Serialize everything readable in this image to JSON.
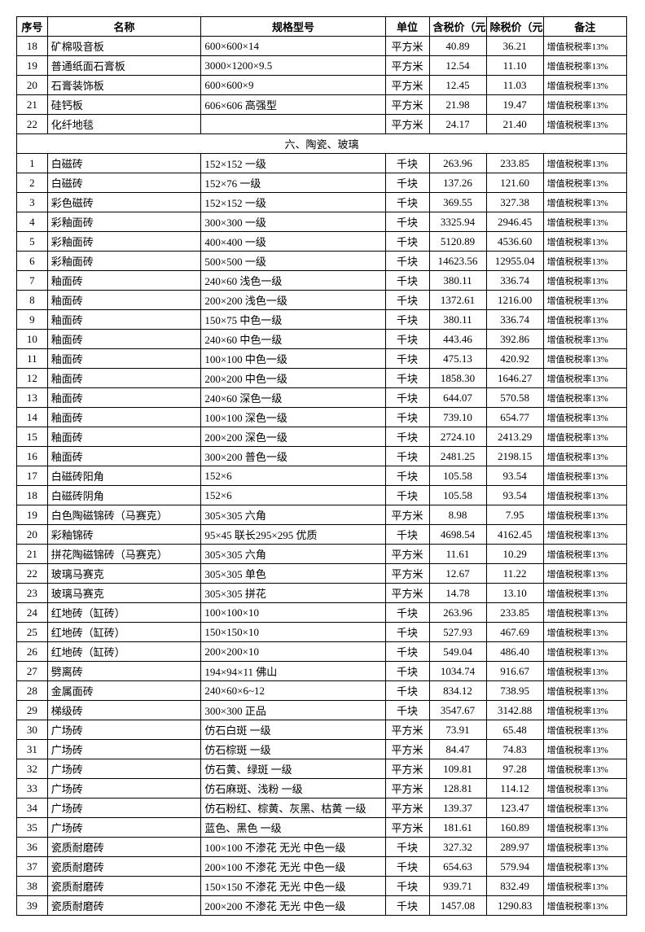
{
  "headers": {
    "idx": "序号",
    "name": "名称",
    "spec": "规格型号",
    "unit": "单位",
    "price_incl": "含税价（元）",
    "price_excl": "除税价（元）",
    "note": "备注"
  },
  "note_text": "增值税税率13%",
  "section_title": "六、陶瓷、玻璃",
  "pre_rows": [
    {
      "idx": "18",
      "name": "矿棉吸音板",
      "spec": "600×600×14",
      "unit": "平方米",
      "p1": "40.89",
      "p2": "36.21",
      "note": true
    },
    {
      "idx": "19",
      "name": "普通纸面石膏板",
      "spec": "3000×1200×9.5",
      "unit": "平方米",
      "p1": "12.54",
      "p2": "11.10",
      "note": true
    },
    {
      "idx": "20",
      "name": "石膏装饰板",
      "spec": "600×600×9",
      "unit": "平方米",
      "p1": "12.45",
      "p2": "11.03",
      "note": true
    },
    {
      "idx": "21",
      "name": "硅钙板",
      "spec": "606×606 高强型",
      "unit": "平方米",
      "p1": "21.98",
      "p2": "19.47",
      "note": true
    },
    {
      "idx": "22",
      "name": "化纤地毯",
      "spec": "",
      "unit": "平方米",
      "p1": "24.17",
      "p2": "21.40",
      "note": true
    }
  ],
  "rows": [
    {
      "idx": "1",
      "name": "白磁砖",
      "spec": "152×152 一级",
      "unit": "千块",
      "p1": "263.96",
      "p2": "233.85",
      "note": true
    },
    {
      "idx": "2",
      "name": "白磁砖",
      "spec": "152×76 一级",
      "unit": "千块",
      "p1": "137.26",
      "p2": "121.60",
      "note": true
    },
    {
      "idx": "3",
      "name": "彩色磁砖",
      "spec": "152×152 一级",
      "unit": "千块",
      "p1": "369.55",
      "p2": "327.38",
      "note": true
    },
    {
      "idx": "4",
      "name": "彩釉面砖",
      "spec": "300×300 一级",
      "unit": "千块",
      "p1": "3325.94",
      "p2": "2946.45",
      "note": true
    },
    {
      "idx": "5",
      "name": "彩釉面砖",
      "spec": "400×400 一级",
      "unit": "千块",
      "p1": "5120.89",
      "p2": "4536.60",
      "note": true
    },
    {
      "idx": "6",
      "name": "彩釉面砖",
      "spec": "500×500 一级",
      "unit": "千块",
      "p1": "14623.56",
      "p2": "12955.04",
      "note": true
    },
    {
      "idx": "7",
      "name": "釉面砖",
      "spec": "240×60 浅色一级",
      "unit": "千块",
      "p1": "380.11",
      "p2": "336.74",
      "note": true
    },
    {
      "idx": "8",
      "name": "釉面砖",
      "spec": "200×200 浅色一级",
      "unit": "千块",
      "p1": "1372.61",
      "p2": "1216.00",
      "note": true
    },
    {
      "idx": "9",
      "name": "釉面砖",
      "spec": "150×75 中色一级",
      "unit": "千块",
      "p1": "380.11",
      "p2": "336.74",
      "note": true
    },
    {
      "idx": "10",
      "name": "釉面砖",
      "spec": "240×60 中色一级",
      "unit": "千块",
      "p1": "443.46",
      "p2": "392.86",
      "note": true
    },
    {
      "idx": "11",
      "name": "釉面砖",
      "spec": "100×100 中色一级",
      "unit": "千块",
      "p1": "475.13",
      "p2": "420.92",
      "note": true
    },
    {
      "idx": "12",
      "name": "釉面砖",
      "spec": "200×200 中色一级",
      "unit": "千块",
      "p1": "1858.30",
      "p2": "1646.27",
      "note": true
    },
    {
      "idx": "13",
      "name": "釉面砖",
      "spec": "240×60 深色一级",
      "unit": "千块",
      "p1": "644.07",
      "p2": "570.58",
      "note": true
    },
    {
      "idx": "14",
      "name": "釉面砖",
      "spec": "100×100 深色一级",
      "unit": "千块",
      "p1": "739.10",
      "p2": "654.77",
      "note": true
    },
    {
      "idx": "15",
      "name": "釉面砖",
      "spec": "200×200 深色一级",
      "unit": "千块",
      "p1": "2724.10",
      "p2": "2413.29",
      "note": true
    },
    {
      "idx": "16",
      "name": "釉面砖",
      "spec": "300×200 普色一级",
      "unit": "千块",
      "p1": "2481.25",
      "p2": "2198.15",
      "note": true
    },
    {
      "idx": "17",
      "name": "白磁砖阳角",
      "spec": "152×6",
      "unit": "千块",
      "p1": "105.58",
      "p2": "93.54",
      "note": true
    },
    {
      "idx": "18",
      "name": "白磁砖阴角",
      "spec": "152×6",
      "unit": "千块",
      "p1": "105.58",
      "p2": "93.54",
      "note": true
    },
    {
      "idx": "19",
      "name": "白色陶磁锦砖（马赛克）",
      "spec": "305×305 六角",
      "unit": "平方米",
      "p1": "8.98",
      "p2": "7.95",
      "note": true
    },
    {
      "idx": "20",
      "name": "彩釉锦砖",
      "spec": "95×45 联长295×295 优质",
      "unit": "千块",
      "p1": "4698.54",
      "p2": "4162.45",
      "note": true
    },
    {
      "idx": "21",
      "name": "拼花陶磁锦砖（马赛克）",
      "spec": "305×305 六角",
      "unit": "平方米",
      "p1": "11.61",
      "p2": "10.29",
      "note": true
    },
    {
      "idx": "22",
      "name": "玻璃马赛克",
      "spec": "305×305 单色",
      "unit": "平方米",
      "p1": "12.67",
      "p2": "11.22",
      "note": true
    },
    {
      "idx": "23",
      "name": "玻璃马赛克",
      "spec": "305×305 拼花",
      "unit": "平方米",
      "p1": "14.78",
      "p2": "13.10",
      "note": true
    },
    {
      "idx": "24",
      "name": "红地砖（缸砖）",
      "spec": "100×100×10",
      "unit": "千块",
      "p1": "263.96",
      "p2": "233.85",
      "note": true
    },
    {
      "idx": "25",
      "name": "红地砖（缸砖）",
      "spec": "150×150×10",
      "unit": "千块",
      "p1": "527.93",
      "p2": "467.69",
      "note": true
    },
    {
      "idx": "26",
      "name": "红地砖（缸砖）",
      "spec": "200×200×10",
      "unit": "千块",
      "p1": "549.04",
      "p2": "486.40",
      "note": true
    },
    {
      "idx": "27",
      "name": "劈离砖",
      "spec": "194×94×11 佛山",
      "unit": "千块",
      "p1": "1034.74",
      "p2": "916.67",
      "note": true
    },
    {
      "idx": "28",
      "name": "金属面砖",
      "spec": "240×60×6~12",
      "unit": "千块",
      "p1": "834.12",
      "p2": "738.95",
      "note": true
    },
    {
      "idx": "29",
      "name": "梯级砖",
      "spec": "300×300 正品",
      "unit": "千块",
      "p1": "3547.67",
      "p2": "3142.88",
      "note": true
    },
    {
      "idx": "30",
      "name": "广场砖",
      "spec": "仿石白斑 一级",
      "unit": "平方米",
      "p1": "73.91",
      "p2": "65.48",
      "note": true
    },
    {
      "idx": "31",
      "name": "广场砖",
      "spec": "仿石棕斑 一级",
      "unit": "平方米",
      "p1": "84.47",
      "p2": "74.83",
      "note": true
    },
    {
      "idx": "32",
      "name": "广场砖",
      "spec": "仿石黄、绿斑 一级",
      "unit": "平方米",
      "p1": "109.81",
      "p2": "97.28",
      "note": true
    },
    {
      "idx": "33",
      "name": "广场砖",
      "spec": "仿石麻斑、浅粉 一级",
      "unit": "平方米",
      "p1": "128.81",
      "p2": "114.12",
      "note": true
    },
    {
      "idx": "34",
      "name": "广场砖",
      "spec": "仿石粉红、棕黄、灰黑、枯黄 一级",
      "unit": "平方米",
      "p1": "139.37",
      "p2": "123.47",
      "note": true
    },
    {
      "idx": "35",
      "name": "广场砖",
      "spec": "蓝色、黑色 一级",
      "unit": "平方米",
      "p1": "181.61",
      "p2": "160.89",
      "note": true
    },
    {
      "idx": "36",
      "name": "瓷质耐磨砖",
      "spec": "100×100 不渗花 无光 中色一级",
      "unit": "千块",
      "p1": "327.32",
      "p2": "289.97",
      "note": true
    },
    {
      "idx": "37",
      "name": "瓷质耐磨砖",
      "spec": "200×100 不渗花 无光 中色一级",
      "unit": "千块",
      "p1": "654.63",
      "p2": "579.94",
      "note": true
    },
    {
      "idx": "38",
      "name": "瓷质耐磨砖",
      "spec": "150×150 不渗花 无光 中色一级",
      "unit": "千块",
      "p1": "939.71",
      "p2": "832.49",
      "note": true
    },
    {
      "idx": "39",
      "name": "瓷质耐磨砖",
      "spec": "200×200 不渗花 无光 中色一级",
      "unit": "千块",
      "p1": "1457.08",
      "p2": "1290.83",
      "note": true
    }
  ]
}
